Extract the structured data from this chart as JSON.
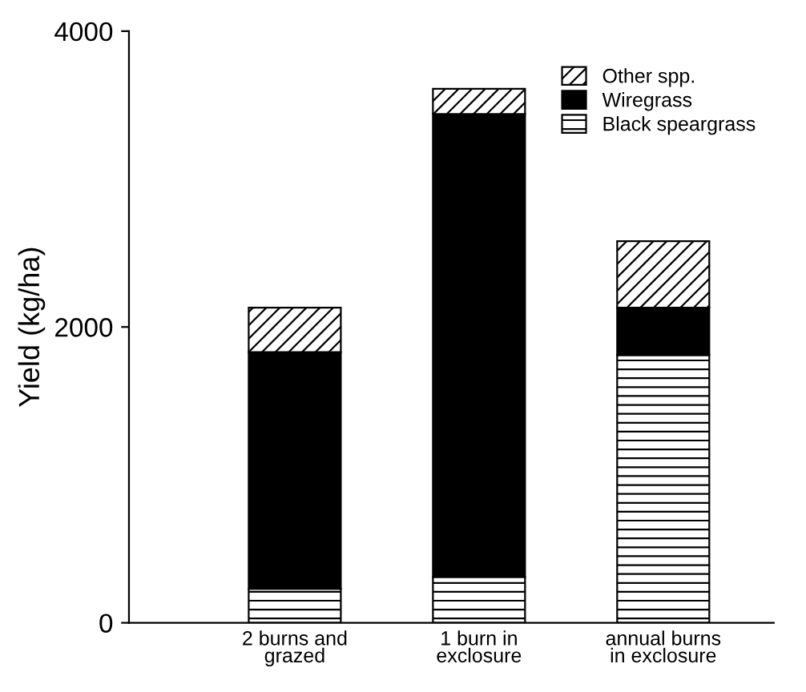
{
  "chart_data": {
    "type": "bar",
    "stacked": true,
    "ylabel": "Yield (kg/ha)",
    "categories": [
      "2 burns and\ngrazed",
      "1 burn in\nexclosure",
      "annual burns\nin exclosure"
    ],
    "series": [
      {
        "name": "Black speargrass",
        "color": "#000000",
        "values": [
          230,
          310,
          1810
        ]
      },
      {
        "name": "Wiregrass",
        "color": "#000000",
        "values": [
          1600,
          3130,
          320
        ]
      },
      {
        "name": "Other spp.",
        "color": "#000000",
        "values": [
          300,
          170,
          450
        ]
      }
    ],
    "ylim": [
      0,
      4000
    ],
    "yticks": [
      0,
      2000,
      4000
    ],
    "grid": false,
    "legend": "top right"
  }
}
